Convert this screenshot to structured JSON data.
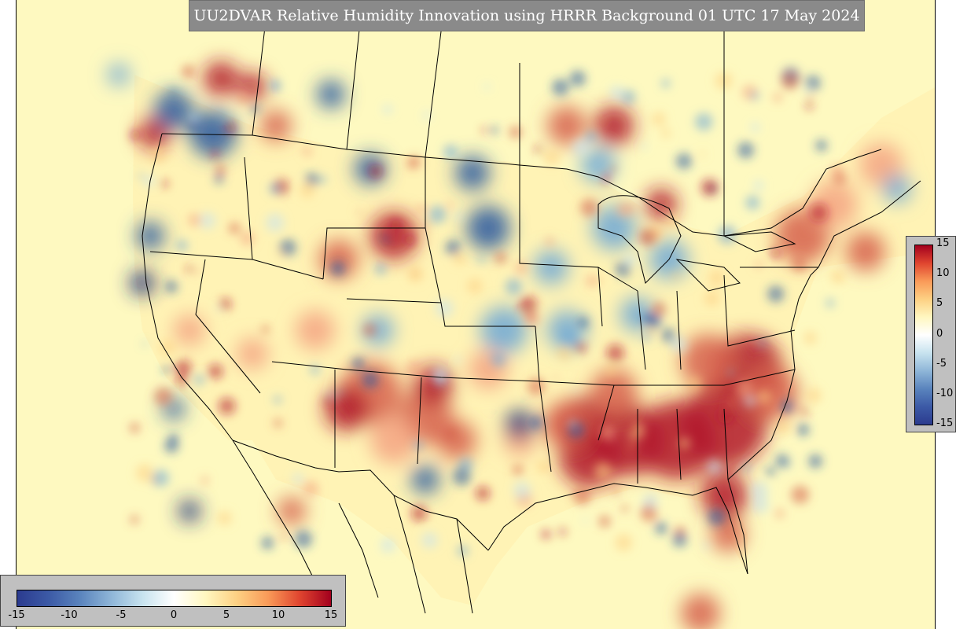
{
  "title": "UU2DVAR Relative Humidity Innovation using HRRR Background 01 UTC 17 May 2024",
  "colorbar": {
    "min": -15,
    "max": 15,
    "colors": [
      "#2b3b8f",
      "#3c5aa6",
      "#5a84bd",
      "#8fb6d8",
      "#c8e3ef",
      "#ffffff",
      "#fff7c0",
      "#fdd083",
      "#f99a58",
      "#e0452f",
      "#a3001e"
    ],
    "side_ticks": [
      "15",
      "10",
      "5",
      "0",
      "-5",
      "-10",
      "-15"
    ],
    "side_values": [
      15,
      10,
      5,
      0,
      -5,
      -10,
      -15
    ],
    "bottom_ticks": [
      "-15",
      "-10",
      "-5",
      "0",
      "5",
      "10",
      "15"
    ],
    "bottom_values": [
      -15,
      -10,
      -5,
      0,
      5,
      10,
      15
    ]
  },
  "map": {
    "background": "#fef9c0",
    "land_color": "#fff4ba",
    "border_color": "#000000"
  }
}
